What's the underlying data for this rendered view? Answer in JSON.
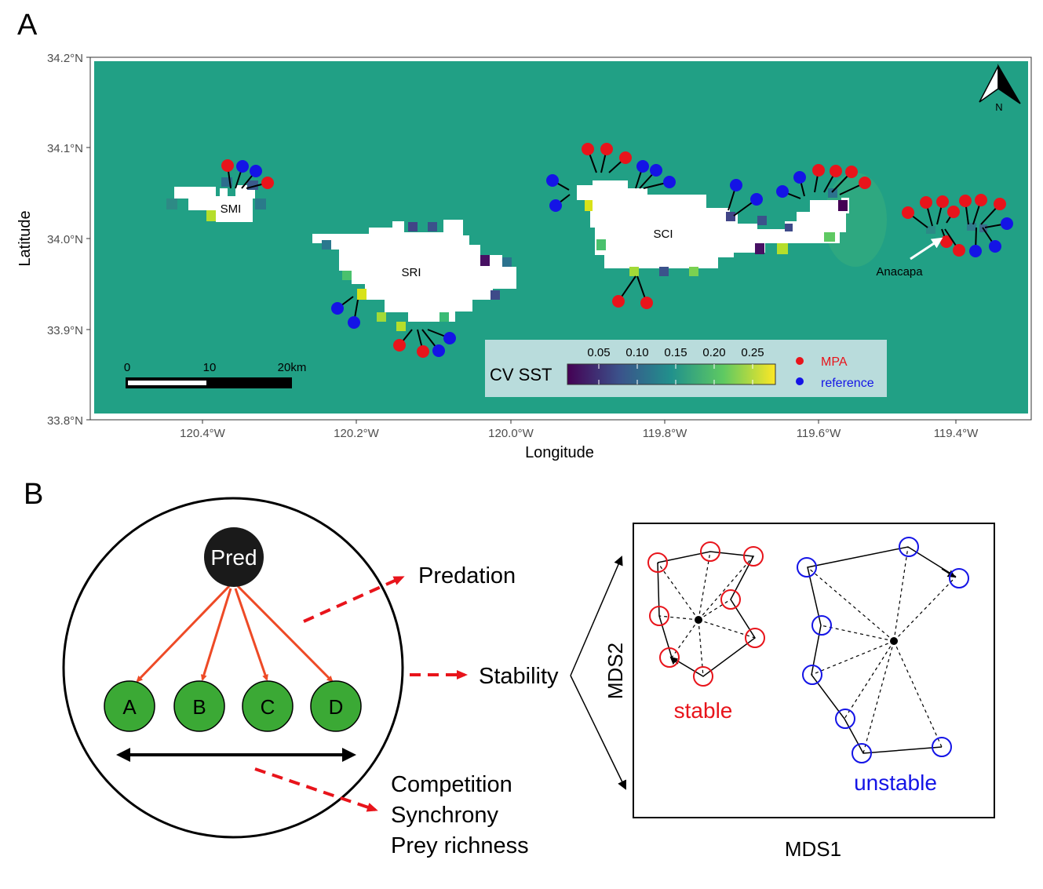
{
  "panel_a": {
    "label": "A",
    "y_axis_title": "Latitude",
    "x_axis_title": "Longitude",
    "y_ticks": [
      "34.2°N",
      "34.1°N",
      "34.0°N",
      "33.9°N",
      "33.8°N"
    ],
    "x_ticks": [
      "120.4°W",
      "120.2°W",
      "120.0°W",
      "119.8°W",
      "119.6°W",
      "119.4°W"
    ],
    "islands": [
      "SMI",
      "SRI",
      "SCI"
    ],
    "anacapa_label": "Anacapa",
    "north_label": "N",
    "scalebar": {
      "labels": [
        "0",
        "10",
        "20km"
      ]
    },
    "legend": {
      "colorbar_title": "CV SST",
      "colorbar_ticks": [
        "0.05",
        "0.10",
        "0.15",
        "0.20",
        "0.25"
      ],
      "site_types": [
        {
          "label": "MPA",
          "color": "#e8141b"
        },
        {
          "label": "reference",
          "color": "#1414e6"
        }
      ]
    },
    "colors": {
      "sea": "#21a085",
      "colorbar_low": "#440154",
      "colorbar_high": "#fde725",
      "legend_bg": "#b9dcdc",
      "mpa": "#e8141b",
      "reference": "#1414e6"
    }
  },
  "panel_b": {
    "label": "B",
    "pred_label": "Pred",
    "prey_labels": [
      "A",
      "B",
      "C",
      "D"
    ],
    "effects": [
      "Predation",
      "Stability"
    ],
    "competition_lines": [
      "Competition",
      "Synchrony",
      "Prey richness"
    ],
    "mds_x": "MDS1",
    "mds_y": "MDS2",
    "stable_label": "stable",
    "unstable_label": "unstable",
    "colors": {
      "prey_fill": "#3ba935",
      "pred_fill": "#1a1a1a",
      "arrow": "#ee4a26",
      "dashed_arrow": "#e8141b",
      "stable": "#e8141b",
      "unstable": "#1414e6"
    }
  }
}
